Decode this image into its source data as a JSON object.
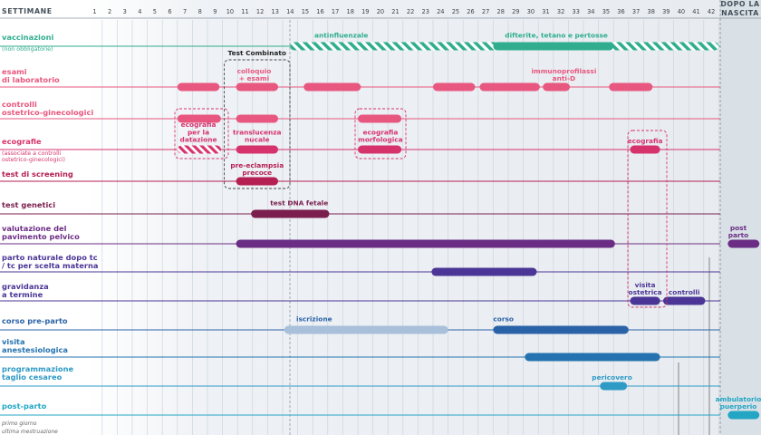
{
  "header": {
    "left": "SETTIMANE",
    "after_birth_1": "DOPO LA",
    "after_birth_2": "NASCITA"
  },
  "footnote": {
    "line1": "primo giorno",
    "line2": "ultima mestruazione"
  },
  "colors": {
    "green": "#2fad8e",
    "pink": "#e8577f",
    "magenta": "#d6336c",
    "crimson": "#b51f52",
    "plum": "#7a1e4e",
    "purple": "#6b2d84",
    "indigo": "#4b3596",
    "blue": "#2a62a8",
    "lightblue": "#a8c0da",
    "steel": "#2473b0",
    "cyan": "#2e9ac6",
    "teal": "#22a6c4"
  },
  "chart_data": {
    "type": "gantt",
    "title": "",
    "xlabel": "SETTIMANE",
    "weeks": [
      1,
      42
    ],
    "ticks": [
      "1",
      "2",
      "3",
      "4",
      "5",
      "6",
      "7",
      "8",
      "9",
      "10",
      "11",
      "12",
      "13",
      "14",
      "15",
      "16",
      "17",
      "18",
      "19",
      "20",
      "21",
      "22",
      "23",
      "24",
      "25",
      "26",
      "27",
      "28",
      "29",
      "30",
      "31",
      "32",
      "33",
      "34",
      "35",
      "36",
      "37",
      "38",
      "39",
      "40",
      "41",
      "42"
    ],
    "rows": [
      {
        "id": "vaccinazioni",
        "label": [
          "vaccinazioni"
        ],
        "sublabel": [
          "(non obbligatorie)"
        ],
        "color": "green",
        "bars": [
          {
            "start": 14,
            "end": 42.5,
            "style": "hatched"
          },
          {
            "start": 27.5,
            "end": 35.5,
            "style": "solid"
          }
        ],
        "labels": [
          {
            "text": [
              "antinfluenzale"
            ],
            "week": 17.4
          },
          {
            "text": [
              "difterite, tetano e pertosse"
            ],
            "week": 31.7
          }
        ]
      },
      {
        "id": "esami",
        "label": [
          "esami",
          "di laboratorio"
        ],
        "color": "pink",
        "bars": [
          {
            "start": 6.5,
            "end": 9.3
          },
          {
            "start": 10.4,
            "end": 13.2
          },
          {
            "start": 14.9,
            "end": 18.7
          },
          {
            "start": 23.5,
            "end": 26.3
          },
          {
            "start": 26.6,
            "end": 30.6
          },
          {
            "start": 30.8,
            "end": 32.6
          },
          {
            "start": 35.2,
            "end": 38.1
          }
        ],
        "labels": [
          {
            "text": [
              "colloquio",
              "+ esami"
            ],
            "week": 11.6
          },
          {
            "text": [
              "immunoprofilassi",
              "anti-D"
            ],
            "week": 32.2
          }
        ]
      },
      {
        "id": "controlli",
        "label": [
          "controlli",
          "ostetrico-ginecologici"
        ],
        "color": "pink",
        "bars": [
          {
            "start": 6.5,
            "end": 9.4
          },
          {
            "start": 10.4,
            "end": 13.2
          },
          {
            "start": 18.5,
            "end": 21.4
          }
        ],
        "labels": []
      },
      {
        "id": "ecografie",
        "label": [
          "ecografie"
        ],
        "sublabel": [
          "(associate a controlli",
          "ostetrico-ginecologici)"
        ],
        "color": "magenta",
        "bars": [
          {
            "start": 6.5,
            "end": 9.4,
            "style": "hatched"
          },
          {
            "start": 10.4,
            "end": 13.2
          },
          {
            "start": 18.5,
            "end": 21.4
          },
          {
            "start": 36.6,
            "end": 38.6
          }
        ],
        "labels": [
          {
            "text": [
              "ecografia",
              "per la",
              "datazione"
            ],
            "week": 7.9
          },
          {
            "text": [
              "translucenza",
              "nucale"
            ],
            "week": 11.8
          },
          {
            "text": [
              "ecografia",
              "morfologica"
            ],
            "week": 20
          },
          {
            "text": [
              "ecografia"
            ],
            "week": 37.6
          }
        ]
      },
      {
        "id": "screening",
        "label": [
          "test di screening"
        ],
        "color": "crimson",
        "bars": [
          {
            "start": 10.4,
            "end": 13.2
          }
        ],
        "labels": [
          {
            "text": [
              "pre-eclampsia",
              "precoce"
            ],
            "week": 11.8
          }
        ]
      },
      {
        "id": "genetici",
        "label": [
          "test genetici"
        ],
        "color": "plum",
        "bars": [
          {
            "start": 11.4,
            "end": 16.6
          }
        ],
        "labels": [
          {
            "text": [
              "test DNA fetale"
            ],
            "week": 14.6
          }
        ]
      },
      {
        "id": "pavimento",
        "label": [
          "valutazione del",
          "pavimento pelvico"
        ],
        "color": "purple",
        "bars": [
          {
            "start": 10.4,
            "end": 35.6
          },
          {
            "start": 43.1,
            "end": 45.2
          }
        ],
        "labels": [
          {
            "text": [
              "post",
              "parto"
            ],
            "week": 43.8
          }
        ]
      },
      {
        "id": "parto_naturale",
        "label": [
          "parto naturale dopo tc",
          "/ tc per scelta materna"
        ],
        "color": "indigo",
        "bars": [
          {
            "start": 23.4,
            "end": 30.4
          }
        ],
        "labels": []
      },
      {
        "id": "gravidanza",
        "label": [
          "gravidanza",
          "a termine"
        ],
        "color": "indigo",
        "bars": [
          {
            "start": 36.6,
            "end": 38.6
          },
          {
            "start": 38.8,
            "end": 41.6
          }
        ],
        "labels": [
          {
            "text": [
              "visita",
              "ostetrica"
            ],
            "week": 37.6
          },
          {
            "text": [
              "controlli"
            ],
            "week": 40.2
          }
        ]
      },
      {
        "id": "preparto",
        "label": [
          "corso pre-parto"
        ],
        "color": "blue",
        "bars": [
          {
            "start": 13.6,
            "end": 24.5,
            "style": "light"
          },
          {
            "start": 27.5,
            "end": 36.5
          }
        ],
        "labels": [
          {
            "text": [
              "iscrizione"
            ],
            "week": 14.4,
            "anchor": "start"
          },
          {
            "text": [
              "corso"
            ],
            "week": 27.5,
            "anchor": "start"
          }
        ]
      },
      {
        "id": "anestesiologica",
        "label": [
          "visita",
          "anestesiologica"
        ],
        "color": "steel",
        "bars": [
          {
            "start": 29.6,
            "end": 38.6
          }
        ],
        "labels": []
      },
      {
        "id": "cesareo",
        "label": [
          "programmazione",
          "taglio cesareo"
        ],
        "color": "cyan",
        "bars": [
          {
            "start": 34.6,
            "end": 36.4
          }
        ],
        "labels": [
          {
            "text": [
              "pericovero"
            ],
            "week": 35.4
          }
        ]
      },
      {
        "id": "postparto",
        "label": [
          "post-parto"
        ],
        "color": "teal",
        "bars": [
          {
            "start": 43.1,
            "end": 45.2
          }
        ],
        "labels": [
          {
            "text": [
              "ambulatorio",
              "puerperio"
            ],
            "week": 43.8
          }
        ]
      }
    ],
    "group_boxes": [
      {
        "title": "Test Combinato",
        "start": 10.1,
        "end": 13.5
      }
    ]
  }
}
